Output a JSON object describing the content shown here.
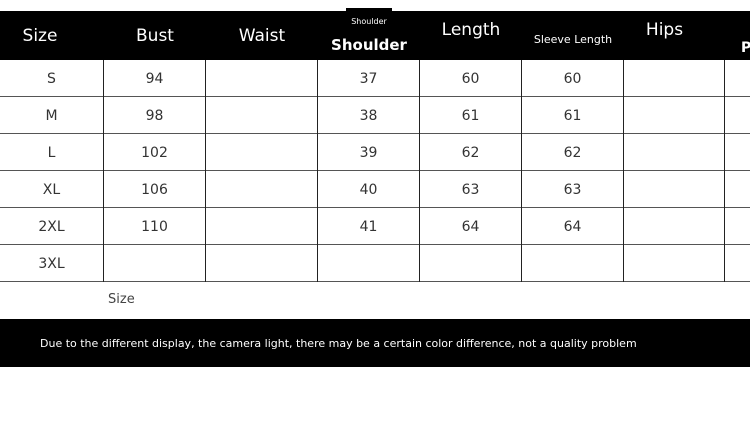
{
  "header": {
    "columns": [
      "Size",
      "Bust",
      "Waist",
      "Shoulder",
      "Length",
      "Sleeve Length",
      "Hips",
      "P"
    ],
    "shoulder_small": "Shoulder"
  },
  "rows": [
    [
      "S",
      "94",
      "",
      "37",
      "60",
      "60",
      "",
      ""
    ],
    [
      "M",
      "98",
      "",
      "38",
      "61",
      "61",
      "",
      ""
    ],
    [
      "L",
      "102",
      "",
      "39",
      "62",
      "62",
      "",
      ""
    ],
    [
      "XL",
      "106",
      "",
      "40",
      "63",
      "63",
      "",
      ""
    ],
    [
      "2XL",
      "110",
      "",
      "41",
      "64",
      "64",
      "",
      ""
    ],
    [
      "3XL",
      "",
      "",
      "",
      "",
      "",
      "",
      ""
    ]
  ],
  "size_label": "Size",
  "footer": "Due to the different display, the camera light, there may be a certain color difference, not a quality problem"
}
